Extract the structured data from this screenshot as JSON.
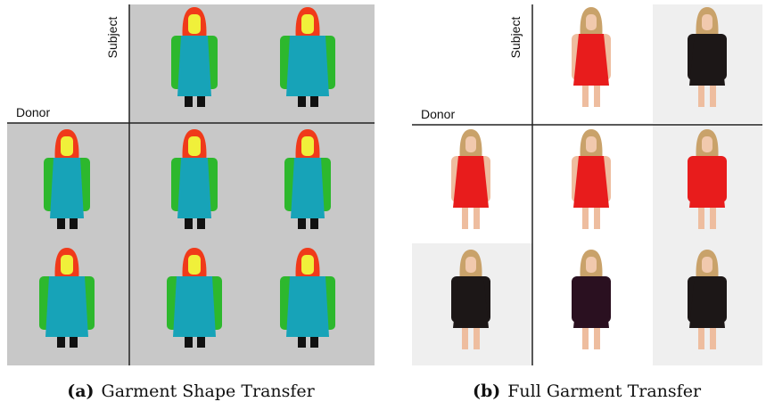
{
  "panels": [
    {
      "label": "(a)",
      "caption": "Garment Shape Transfer",
      "row_label": "Subject",
      "col_label": "Donor"
    },
    {
      "label": "(b)",
      "caption": "Full Garment Transfer",
      "row_label": "Subject",
      "col_label": "Donor"
    }
  ]
}
